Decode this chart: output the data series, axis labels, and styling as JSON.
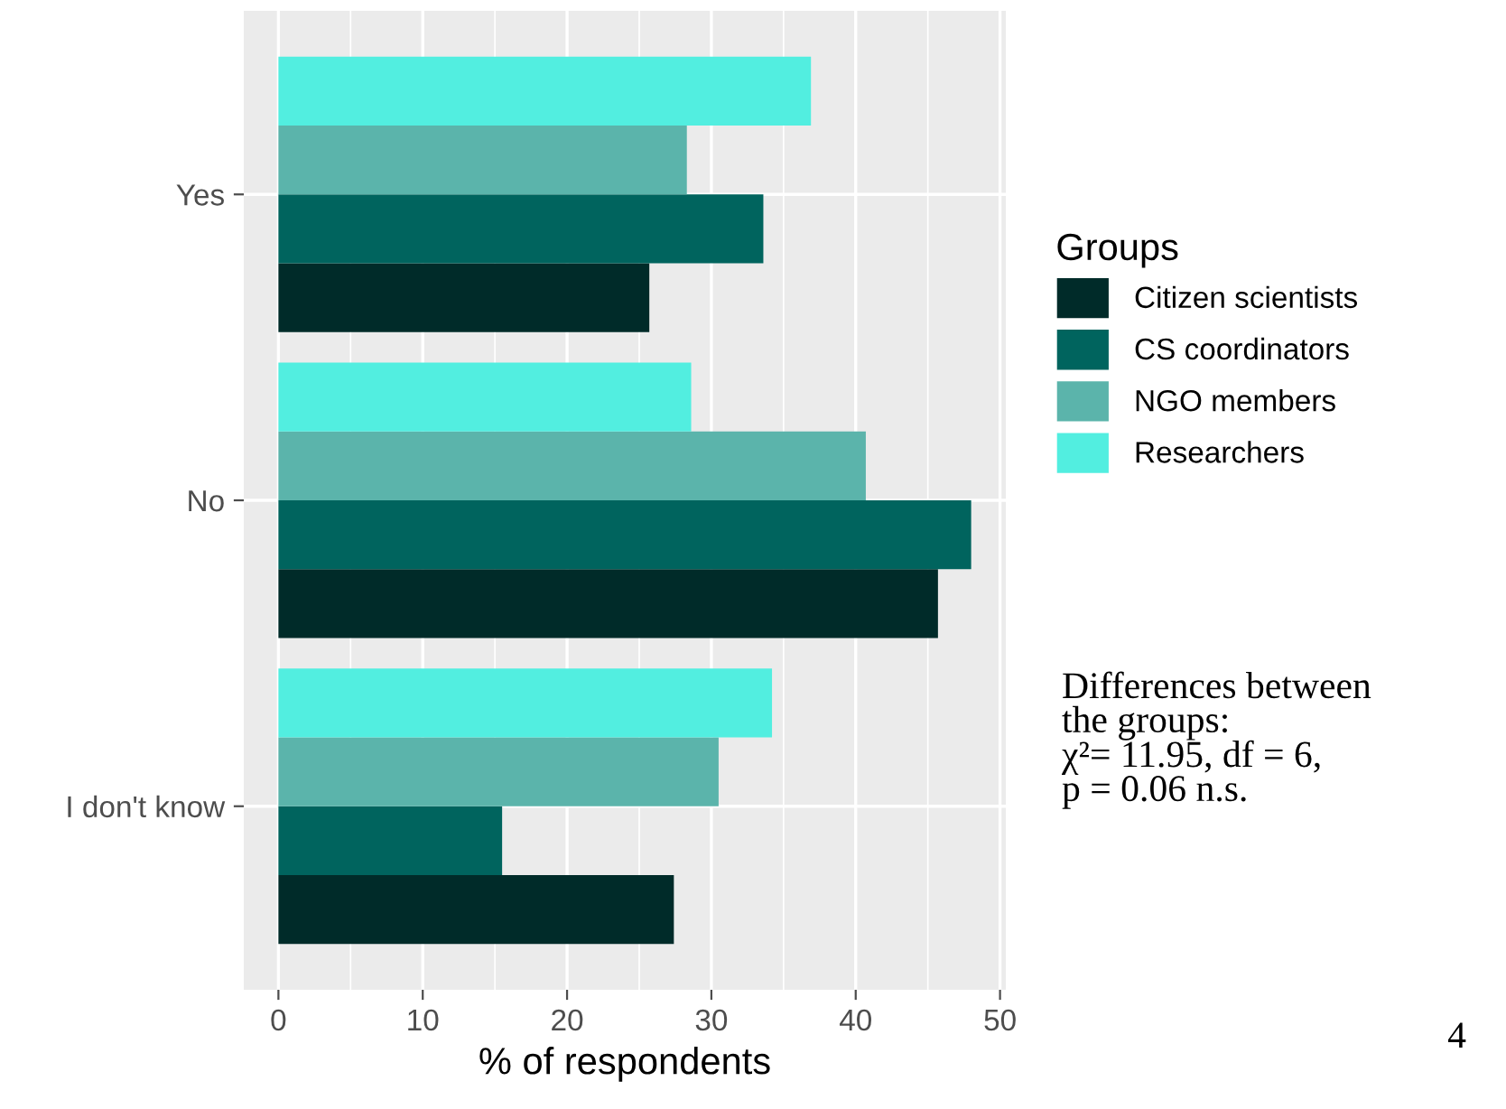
{
  "chart_data": {
    "type": "bar",
    "orientation": "horizontal",
    "xlabel": "% of respondents",
    "legend_title": "Groups",
    "legend": "right",
    "grid": true,
    "categories": [
      "Yes",
      "No",
      "I don't know"
    ],
    "series": [
      {
        "name": "Citizen scientists",
        "color": "#002b29",
        "values": [
          25.7,
          45.7,
          27.4
        ]
      },
      {
        "name": "CS coordinators",
        "color": "#00645e",
        "values": [
          33.6,
          48.0,
          15.5
        ]
      },
      {
        "name": "NGO members",
        "color": "#5bb4ab",
        "values": [
          28.3,
          40.7,
          30.5
        ]
      },
      {
        "name": "Researchers",
        "color": "#52eee0",
        "values": [
          36.9,
          28.6,
          34.2
        ]
      }
    ],
    "xlim": [
      -2.4,
      50.4
    ],
    "xticks": [
      0,
      10,
      20,
      30,
      40,
      50
    ],
    "annotations": [
      "Differences between\nthe groups:\nχ²= 11.95, df = 6,\np = 0.06 n.s.",
      "4"
    ]
  }
}
